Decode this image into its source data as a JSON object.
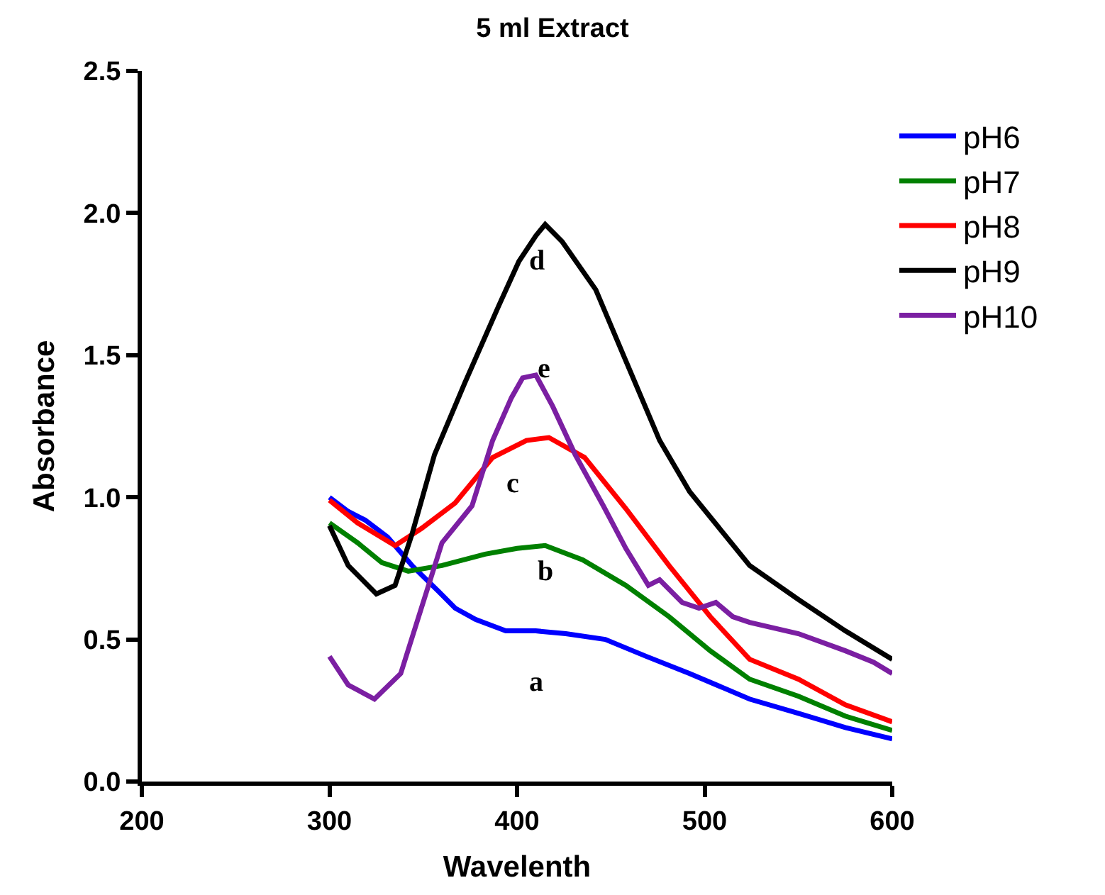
{
  "chart_data": {
    "type": "line",
    "title": "5 ml Extract",
    "xlabel": "Wavelenth",
    "ylabel": "Absorbance",
    "xlim": [
      200,
      600
    ],
    "xticks": [
      200,
      300,
      400,
      500,
      600
    ],
    "ylim": [
      0,
      2.5
    ],
    "yticks": [
      {
        "value": 0,
        "label": "0.0"
      },
      0.5,
      {
        "value": 1,
        "label": "1.0"
      },
      1.5,
      {
        "value": 2,
        "label": "2.0"
      },
      2.5
    ],
    "legend": "top right",
    "marker": "none",
    "line_style": "solid",
    "series": [
      {
        "name": "pH6",
        "color": "#0000ff",
        "x": [
          300,
          310,
          319,
          331,
          344,
          358,
          367,
          378,
          394,
          410,
          426,
          447,
          469,
          492,
          524,
          550,
          575,
          600
        ],
        "values": [
          1.0,
          0.95,
          0.92,
          0.86,
          0.76,
          0.67,
          0.61,
          0.57,
          0.53,
          0.53,
          0.52,
          0.5,
          0.44,
          0.38,
          0.29,
          0.24,
          0.19,
          0.15
        ]
      },
      {
        "name": "pH7",
        "color": "#008000",
        "x": [
          300,
          315,
          328,
          342,
          360,
          383,
          400,
          415,
          435,
          458,
          481,
          503,
          524,
          550,
          575,
          600
        ],
        "values": [
          0.91,
          0.84,
          0.77,
          0.74,
          0.76,
          0.8,
          0.82,
          0.83,
          0.78,
          0.69,
          0.58,
          0.46,
          0.36,
          0.3,
          0.23,
          0.18
        ]
      },
      {
        "name": "pH8",
        "color": "#ff0000",
        "x": [
          300,
          315,
          335,
          349,
          367,
          387,
          405,
          417,
          436,
          458,
          481,
          503,
          524,
          550,
          575,
          600
        ],
        "values": [
          0.99,
          0.91,
          0.83,
          0.89,
          0.98,
          1.14,
          1.2,
          1.21,
          1.14,
          0.96,
          0.76,
          0.58,
          0.43,
          0.36,
          0.27,
          0.21
        ]
      },
      {
        "name": "pH9",
        "color": "#000000",
        "x": [
          300,
          310,
          325,
          335,
          344,
          356,
          372,
          390,
          401,
          410,
          415,
          424,
          442,
          458,
          476,
          492,
          524,
          550,
          575,
          600
        ],
        "values": [
          0.9,
          0.76,
          0.66,
          0.69,
          0.87,
          1.15,
          1.4,
          1.67,
          1.83,
          1.92,
          1.96,
          1.9,
          1.73,
          1.48,
          1.2,
          1.02,
          0.76,
          0.64,
          0.53,
          0.43
        ]
      },
      {
        "name": "pH10",
        "color": "#7b1fa2",
        "x": [
          300,
          310,
          324,
          338,
          349,
          360,
          376,
          387,
          397,
          403,
          410,
          419,
          431,
          446,
          458,
          470,
          476,
          488,
          497,
          506,
          515,
          524,
          550,
          575,
          590,
          600
        ],
        "values": [
          0.44,
          0.34,
          0.29,
          0.38,
          0.61,
          0.84,
          0.97,
          1.2,
          1.35,
          1.42,
          1.43,
          1.32,
          1.15,
          0.97,
          0.82,
          0.69,
          0.71,
          0.63,
          0.61,
          0.63,
          0.58,
          0.56,
          0.52,
          0.46,
          0.42,
          0.38
        ]
      }
    ],
    "annotations": [
      "a",
      "b",
      "c",
      "d",
      "e"
    ]
  }
}
